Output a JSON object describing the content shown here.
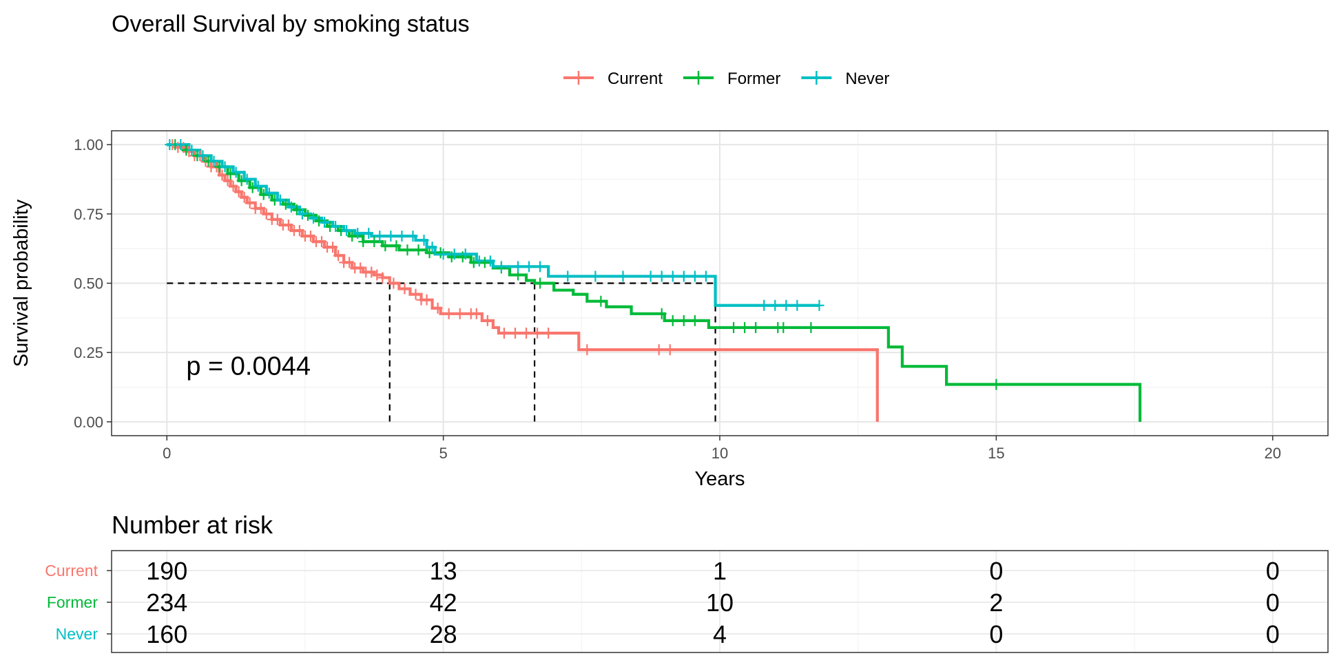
{
  "chart_data": [
    {
      "type": "line",
      "subtype": "kaplan-meier",
      "title": "Overall Survival by smoking status",
      "xlabel": "Years",
      "ylabel": "Survival probability",
      "xlim": [
        -1,
        21
      ],
      "ylim": [
        -0.05,
        1.05
      ],
      "xticks": [
        0,
        5,
        10,
        15,
        20
      ],
      "yticks": [
        0,
        0.25,
        0.5,
        0.75,
        1.0
      ],
      "xtick_labels": [
        "0",
        "5",
        "10",
        "15",
        "20"
      ],
      "ytick_labels": [
        "0.00",
        "0.25",
        "0.50",
        "0.75",
        "1.00"
      ],
      "grid": true,
      "legend_position": "top",
      "pvalue_label": "p = 0.0044",
      "pvalue_position": [
        0.35,
        0.2
      ],
      "median_survival": [
        {
          "series": "Current",
          "x": 4.03,
          "y": 0.5
        },
        {
          "series": "Former",
          "x": 6.65,
          "y": 0.5
        },
        {
          "series": "Never",
          "x": 9.92,
          "y": 0.5
        }
      ],
      "series": [
        {
          "name": "Current",
          "color": "#F8766D",
          "steps": [
            [
              0,
              1.0
            ],
            [
              0.2,
              0.99
            ],
            [
              0.35,
              0.975
            ],
            [
              0.5,
              0.96
            ],
            [
              0.65,
              0.94
            ],
            [
              0.8,
              0.92
            ],
            [
              0.95,
              0.89
            ],
            [
              1.05,
              0.87
            ],
            [
              1.15,
              0.85
            ],
            [
              1.25,
              0.83
            ],
            [
              1.35,
              0.81
            ],
            [
              1.45,
              0.79
            ],
            [
              1.6,
              0.77
            ],
            [
              1.75,
              0.75
            ],
            [
              1.9,
              0.73
            ],
            [
              2.05,
              0.71
            ],
            [
              2.25,
              0.69
            ],
            [
              2.45,
              0.67
            ],
            [
              2.65,
              0.65
            ],
            [
              2.85,
              0.63
            ],
            [
              3.05,
              0.6
            ],
            [
              3.2,
              0.575
            ],
            [
              3.35,
              0.555
            ],
            [
              3.55,
              0.54
            ],
            [
              3.75,
              0.53
            ],
            [
              3.9,
              0.52
            ],
            [
              4.03,
              0.5
            ],
            [
              4.2,
              0.48
            ],
            [
              4.4,
              0.46
            ],
            [
              4.6,
              0.44
            ],
            [
              4.8,
              0.41
            ],
            [
              4.95,
              0.39
            ],
            [
              5.7,
              0.365
            ],
            [
              5.9,
              0.34
            ],
            [
              6.0,
              0.32
            ],
            [
              7.45,
              0.26
            ],
            [
              12.85,
              0.0
            ]
          ],
          "censor_x": [
            0.1,
            0.2,
            0.3,
            0.4,
            0.5,
            0.6,
            0.7,
            0.8,
            0.9,
            1.0,
            1.1,
            1.2,
            1.3,
            1.4,
            1.5,
            1.6,
            1.7,
            1.8,
            1.9,
            2.0,
            2.1,
            2.2,
            2.3,
            2.4,
            2.5,
            2.6,
            2.7,
            2.8,
            2.9,
            3.0,
            3.1,
            3.2,
            3.3,
            3.4,
            3.5,
            3.6,
            3.7,
            3.8,
            3.9,
            4.1,
            4.3,
            4.5,
            4.6,
            4.7,
            4.9,
            5.1,
            5.3,
            5.5,
            5.6,
            5.8,
            6.1,
            6.3,
            6.5,
            6.7,
            6.9,
            7.6,
            8.9,
            9.1
          ],
          "label": "Current",
          "risk": [
            "190",
            "13",
            "1",
            "0",
            "0"
          ]
        },
        {
          "name": "Former",
          "color": "#00BA38",
          "steps": [
            [
              0,
              1.0
            ],
            [
              0.3,
              0.98
            ],
            [
              0.5,
              0.96
            ],
            [
              0.7,
              0.94
            ],
            [
              0.9,
              0.92
            ],
            [
              1.1,
              0.895
            ],
            [
              1.3,
              0.87
            ],
            [
              1.5,
              0.845
            ],
            [
              1.7,
              0.82
            ],
            [
              1.9,
              0.8
            ],
            [
              2.1,
              0.785
            ],
            [
              2.3,
              0.765
            ],
            [
              2.5,
              0.745
            ],
            [
              2.7,
              0.725
            ],
            [
              2.9,
              0.705
            ],
            [
              3.1,
              0.69
            ],
            [
              3.3,
              0.67
            ],
            [
              3.55,
              0.65
            ],
            [
              3.9,
              0.635
            ],
            [
              4.2,
              0.62
            ],
            [
              4.7,
              0.61
            ],
            [
              5.1,
              0.595
            ],
            [
              5.5,
              0.575
            ],
            [
              5.9,
              0.555
            ],
            [
              6.2,
              0.53
            ],
            [
              6.5,
              0.51
            ],
            [
              6.65,
              0.5
            ],
            [
              7.0,
              0.475
            ],
            [
              7.35,
              0.46
            ],
            [
              7.6,
              0.435
            ],
            [
              7.95,
              0.415
            ],
            [
              8.4,
              0.39
            ],
            [
              9.0,
              0.365
            ],
            [
              9.8,
              0.34
            ],
            [
              13.05,
              0.27
            ],
            [
              13.3,
              0.2
            ],
            [
              14.1,
              0.135
            ],
            [
              17.6,
              0.0
            ]
          ],
          "censor_x": [
            0.15,
            0.35,
            0.55,
            0.75,
            0.95,
            1.15,
            1.35,
            1.55,
            1.75,
            1.95,
            2.15,
            2.35,
            2.55,
            2.75,
            2.95,
            3.15,
            3.35,
            3.55,
            3.75,
            3.95,
            4.15,
            4.35,
            4.55,
            4.75,
            4.95,
            5.15,
            5.35,
            5.55,
            5.75,
            6.05,
            6.35,
            6.75,
            7.85,
            8.95,
            9.15,
            9.35,
            9.55,
            10.25,
            10.45,
            10.65,
            11.05,
            11.15,
            11.65,
            15.0
          ],
          "label": "Former",
          "risk": [
            "234",
            "42",
            "10",
            "2",
            "0"
          ]
        },
        {
          "name": "Never",
          "color": "#00BFC4",
          "steps": [
            [
              0,
              1.0
            ],
            [
              0.4,
              0.98
            ],
            [
              0.6,
              0.96
            ],
            [
              0.8,
              0.94
            ],
            [
              1.0,
              0.92
            ],
            [
              1.2,
              0.9
            ],
            [
              1.4,
              0.875
            ],
            [
              1.6,
              0.85
            ],
            [
              1.8,
              0.825
            ],
            [
              2.0,
              0.8
            ],
            [
              2.2,
              0.775
            ],
            [
              2.4,
              0.75
            ],
            [
              2.6,
              0.735
            ],
            [
              2.8,
              0.72
            ],
            [
              3.0,
              0.705
            ],
            [
              3.2,
              0.69
            ],
            [
              3.4,
              0.68
            ],
            [
              3.7,
              0.67
            ],
            [
              4.5,
              0.655
            ],
            [
              4.7,
              0.63
            ],
            [
              4.85,
              0.605
            ],
            [
              5.6,
              0.58
            ],
            [
              5.9,
              0.56
            ],
            [
              6.3,
              0.56
            ],
            [
              6.9,
              0.525
            ],
            [
              9.92,
              0.42
            ],
            [
              11.8,
              0.42
            ]
          ],
          "censor_x": [
            0.05,
            0.25,
            0.45,
            0.65,
            0.85,
            1.05,
            1.25,
            1.45,
            1.65,
            1.85,
            2.05,
            2.25,
            2.45,
            2.65,
            2.85,
            3.05,
            3.25,
            3.45,
            3.65,
            3.85,
            4.05,
            4.25,
            4.45,
            4.65,
            4.8,
            5.0,
            5.2,
            5.4,
            5.65,
            5.85,
            6.05,
            6.35,
            6.55,
            6.75,
            7.25,
            7.75,
            8.25,
            8.75,
            8.95,
            9.15,
            9.35,
            9.55,
            9.75,
            10.8,
            11.0,
            11.2,
            11.4,
            11.8
          ],
          "label": "Never",
          "risk": [
            "160",
            "28",
            "4",
            "0",
            "0"
          ]
        }
      ]
    },
    {
      "type": "table",
      "title": "Number at risk",
      "x": [
        0,
        5,
        10,
        15,
        20
      ],
      "rows": [
        {
          "label": "Current",
          "color": "#F8766D",
          "values": [
            190,
            13,
            1,
            0,
            0
          ]
        },
        {
          "label": "Former",
          "color": "#00BA38",
          "values": [
            234,
            42,
            10,
            2,
            0
          ]
        },
        {
          "label": "Never",
          "color": "#00BFC4",
          "values": [
            160,
            28,
            4,
            0,
            0
          ]
        }
      ]
    }
  ],
  "risk_title": "Number at risk"
}
